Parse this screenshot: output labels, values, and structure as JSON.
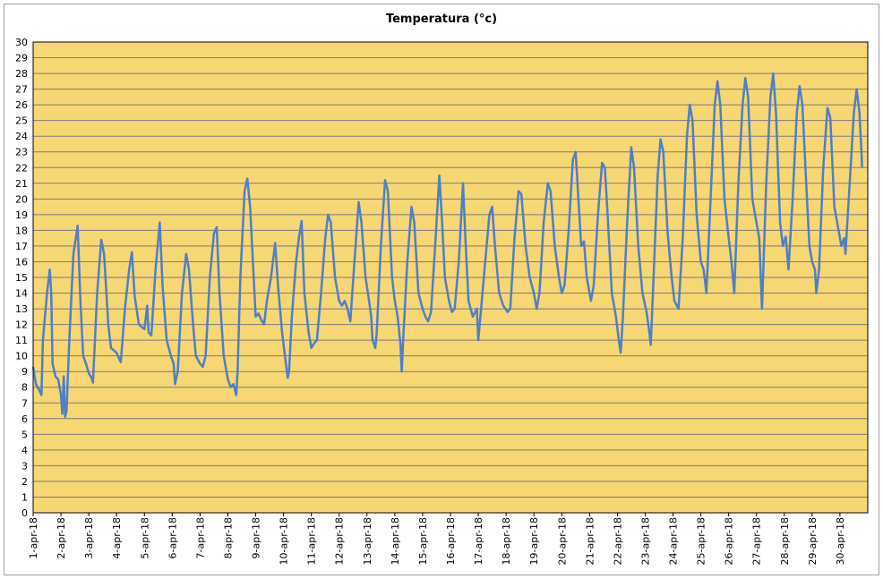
{
  "colors": {
    "plot_background": "#f7d774",
    "gridline": "#7a7a7a",
    "series_line": "#4f7fc4",
    "plot_border": "#000000"
  },
  "chart_data": {
    "type": "line",
    "title": "Temperatura (°c)",
    "xlabel": "",
    "ylabel": "",
    "ylim": [
      0,
      30
    ],
    "yticks": [
      "0",
      "1",
      "2",
      "3",
      "4",
      "5",
      "6",
      "7",
      "8",
      "9",
      "10",
      "11",
      "12",
      "13",
      "14",
      "15",
      "16",
      "17",
      "18",
      "19",
      "20",
      "21",
      "22",
      "23",
      "24",
      "25",
      "26",
      "27",
      "28",
      "29",
      "30"
    ],
    "grid": true,
    "legend": "none",
    "categories": [
      "1-apr-18",
      "2-apr-18",
      "3-apr-18",
      "4-apr-18",
      "5-apr-18",
      "6-apr-18",
      "7-apr-18",
      "8-apr-18",
      "9-apr-18",
      "10-apr-18",
      "11-apr-18",
      "12-apr-18",
      "13-apr-18",
      "14-apr-18",
      "15-apr-18",
      "16-apr-18",
      "17-apr-18",
      "18-apr-18",
      "19-apr-18",
      "20-apr-18",
      "21-apr-18",
      "22-apr-18",
      "23-apr-18",
      "24-apr-18",
      "25-apr-18",
      "26-apr-18",
      "27-apr-18",
      "28-apr-18",
      "29-apr-18",
      "30-apr-18"
    ],
    "series": [
      {
        "name": "",
        "points": [
          [
            0.0,
            9.3
          ],
          [
            0.1,
            8.2
          ],
          [
            0.2,
            7.9
          ],
          [
            0.3,
            7.5
          ],
          [
            0.35,
            11.0
          ],
          [
            0.5,
            14.0
          ],
          [
            0.6,
            15.5
          ],
          [
            0.65,
            14.0
          ],
          [
            0.7,
            9.5
          ],
          [
            0.8,
            8.7
          ],
          [
            0.9,
            8.5
          ],
          [
            1.0,
            7.5
          ],
          [
            1.05,
            6.3
          ],
          [
            1.1,
            8.7
          ],
          [
            1.15,
            6.1
          ],
          [
            1.2,
            6.5
          ],
          [
            1.3,
            11.0
          ],
          [
            1.45,
            16.5
          ],
          [
            1.6,
            18.3
          ],
          [
            1.7,
            13.5
          ],
          [
            1.8,
            10.0
          ],
          [
            1.9,
            9.5
          ],
          [
            2.0,
            8.9
          ],
          [
            2.1,
            8.6
          ],
          [
            2.15,
            8.3
          ],
          [
            2.3,
            14.0
          ],
          [
            2.45,
            17.4
          ],
          [
            2.55,
            16.5
          ],
          [
            2.7,
            12.0
          ],
          [
            2.8,
            10.5
          ],
          [
            3.0,
            10.2
          ],
          [
            3.1,
            9.8
          ],
          [
            3.15,
            9.6
          ],
          [
            3.3,
            13.0
          ],
          [
            3.45,
            15.5
          ],
          [
            3.55,
            16.6
          ],
          [
            3.65,
            13.8
          ],
          [
            3.8,
            12.0
          ],
          [
            4.0,
            11.7
          ],
          [
            4.1,
            13.2
          ],
          [
            4.15,
            11.5
          ],
          [
            4.25,
            11.3
          ],
          [
            4.4,
            15.5
          ],
          [
            4.55,
            18.5
          ],
          [
            4.65,
            14.5
          ],
          [
            4.8,
            11.0
          ],
          [
            4.95,
            10.0
          ],
          [
            5.05,
            9.5
          ],
          [
            5.1,
            8.2
          ],
          [
            5.2,
            9.0
          ],
          [
            5.35,
            14.0
          ],
          [
            5.5,
            16.5
          ],
          [
            5.6,
            15.5
          ],
          [
            5.75,
            12.0
          ],
          [
            5.85,
            10.0
          ],
          [
            6.0,
            9.5
          ],
          [
            6.1,
            9.3
          ],
          [
            6.2,
            10.0
          ],
          [
            6.35,
            15.0
          ],
          [
            6.5,
            17.8
          ],
          [
            6.6,
            18.2
          ],
          [
            6.7,
            14.0
          ],
          [
            6.85,
            10.0
          ],
          [
            7.0,
            8.5
          ],
          [
            7.1,
            8.0
          ],
          [
            7.2,
            8.2
          ],
          [
            7.3,
            7.5
          ],
          [
            7.35,
            9.0
          ],
          [
            7.45,
            15.0
          ],
          [
            7.6,
            20.5
          ],
          [
            7.7,
            21.3
          ],
          [
            7.8,
            19.5
          ],
          [
            7.9,
            16.0
          ],
          [
            8.0,
            12.5
          ],
          [
            8.1,
            12.7
          ],
          [
            8.2,
            12.3
          ],
          [
            8.3,
            12.0
          ],
          [
            8.4,
            13.5
          ],
          [
            8.55,
            15.0
          ],
          [
            8.7,
            17.2
          ],
          [
            8.8,
            14.5
          ],
          [
            8.95,
            11.5
          ],
          [
            9.05,
            10.0
          ],
          [
            9.15,
            8.6
          ],
          [
            9.2,
            9.0
          ],
          [
            9.3,
            12.5
          ],
          [
            9.45,
            16.0
          ],
          [
            9.55,
            17.5
          ],
          [
            9.65,
            18.6
          ],
          [
            9.75,
            14.0
          ],
          [
            9.9,
            11.5
          ],
          [
            10.0,
            10.5
          ],
          [
            10.1,
            10.8
          ],
          [
            10.2,
            11.0
          ],
          [
            10.35,
            14.0
          ],
          [
            10.5,
            17.5
          ],
          [
            10.6,
            19.0
          ],
          [
            10.7,
            18.5
          ],
          [
            10.85,
            15.0
          ],
          [
            11.0,
            13.5
          ],
          [
            11.1,
            13.2
          ],
          [
            11.2,
            13.5
          ],
          [
            11.3,
            13.0
          ],
          [
            11.4,
            12.2
          ],
          [
            11.55,
            16.0
          ],
          [
            11.7,
            19.8
          ],
          [
            11.8,
            18.5
          ],
          [
            11.95,
            15.0
          ],
          [
            12.05,
            13.8
          ],
          [
            12.15,
            12.5
          ],
          [
            12.2,
            11.0
          ],
          [
            12.3,
            10.5
          ],
          [
            12.35,
            11.5
          ],
          [
            12.5,
            17.0
          ],
          [
            12.65,
            21.2
          ],
          [
            12.75,
            20.5
          ],
          [
            12.9,
            15.0
          ],
          [
            13.0,
            13.5
          ],
          [
            13.1,
            12.5
          ],
          [
            13.2,
            10.8
          ],
          [
            13.25,
            9.0
          ],
          [
            13.3,
            11.0
          ],
          [
            13.45,
            16.0
          ],
          [
            13.6,
            19.5
          ],
          [
            13.7,
            18.5
          ],
          [
            13.85,
            14.0
          ],
          [
            14.0,
            13.0
          ],
          [
            14.1,
            12.5
          ],
          [
            14.2,
            12.2
          ],
          [
            14.3,
            12.8
          ],
          [
            14.45,
            17.0
          ],
          [
            14.6,
            21.5
          ],
          [
            14.7,
            18.5
          ],
          [
            14.8,
            15.0
          ],
          [
            14.95,
            13.5
          ],
          [
            15.05,
            12.8
          ],
          [
            15.15,
            13.0
          ],
          [
            15.3,
            16.0
          ],
          [
            15.45,
            21.0
          ],
          [
            15.55,
            17.0
          ],
          [
            15.65,
            13.5
          ],
          [
            15.8,
            12.5
          ],
          [
            15.95,
            13.0
          ],
          [
            16.0,
            11.0
          ],
          [
            16.1,
            13.0
          ],
          [
            16.25,
            16.0
          ],
          [
            16.4,
            19.0
          ],
          [
            16.5,
            19.5
          ],
          [
            16.6,
            17.0
          ],
          [
            16.75,
            14.0
          ],
          [
            16.9,
            13.2
          ],
          [
            17.05,
            12.8
          ],
          [
            17.15,
            13.0
          ],
          [
            17.3,
            17.5
          ],
          [
            17.45,
            20.5
          ],
          [
            17.55,
            20.3
          ],
          [
            17.7,
            17.0
          ],
          [
            17.85,
            15.0
          ],
          [
            18.0,
            14.0
          ],
          [
            18.1,
            13.0
          ],
          [
            18.2,
            14.0
          ],
          [
            18.35,
            18.5
          ],
          [
            18.5,
            21.0
          ],
          [
            18.6,
            20.5
          ],
          [
            18.75,
            17.0
          ],
          [
            18.9,
            15.0
          ],
          [
            19.0,
            14.0
          ],
          [
            19.1,
            14.5
          ],
          [
            19.25,
            18.0
          ],
          [
            19.4,
            22.5
          ],
          [
            19.5,
            23.0
          ],
          [
            19.6,
            20.0
          ],
          [
            19.7,
            17.0
          ],
          [
            19.8,
            17.3
          ],
          [
            19.9,
            15.0
          ],
          [
            20.05,
            13.5
          ],
          [
            20.15,
            14.5
          ],
          [
            20.3,
            19.0
          ],
          [
            20.45,
            22.3
          ],
          [
            20.55,
            22.0
          ],
          [
            20.65,
            19.0
          ],
          [
            20.8,
            14.0
          ],
          [
            20.95,
            12.5
          ],
          [
            21.05,
            11.0
          ],
          [
            21.12,
            10.2
          ],
          [
            21.2,
            12.5
          ],
          [
            21.35,
            18.5
          ],
          [
            21.5,
            23.3
          ],
          [
            21.6,
            22.0
          ],
          [
            21.75,
            17.0
          ],
          [
            21.9,
            14.0
          ],
          [
            22.05,
            12.8
          ],
          [
            22.15,
            11.5
          ],
          [
            22.2,
            10.7
          ],
          [
            22.3,
            15.0
          ],
          [
            22.45,
            21.5
          ],
          [
            22.55,
            23.8
          ],
          [
            22.65,
            23.0
          ],
          [
            22.8,
            18.0
          ],
          [
            22.95,
            15.0
          ],
          [
            23.05,
            13.5
          ],
          [
            23.2,
            13.0
          ],
          [
            23.35,
            17.5
          ],
          [
            23.5,
            24.0
          ],
          [
            23.6,
            26.0
          ],
          [
            23.7,
            25.0
          ],
          [
            23.85,
            19.0
          ],
          [
            24.0,
            16.0
          ],
          [
            24.1,
            15.5
          ],
          [
            24.2,
            14.0
          ],
          [
            24.35,
            20.0
          ],
          [
            24.5,
            26.0
          ],
          [
            24.6,
            27.5
          ],
          [
            24.7,
            26.0
          ],
          [
            24.85,
            20.0
          ],
          [
            25.0,
            17.5
          ],
          [
            25.1,
            16.0
          ],
          [
            25.2,
            14.0
          ],
          [
            25.35,
            21.0
          ],
          [
            25.5,
            26.0
          ],
          [
            25.6,
            27.7
          ],
          [
            25.7,
            26.5
          ],
          [
            25.85,
            20.0
          ],
          [
            26.0,
            18.5
          ],
          [
            26.1,
            17.5
          ],
          [
            26.2,
            13.0
          ],
          [
            26.35,
            21.0
          ],
          [
            26.5,
            26.5
          ],
          [
            26.6,
            28.0
          ],
          [
            26.7,
            25.5
          ],
          [
            26.85,
            18.5
          ],
          [
            26.95,
            17.0
          ],
          [
            27.05,
            17.6
          ],
          [
            27.15,
            15.5
          ],
          [
            27.3,
            20.0
          ],
          [
            27.45,
            25.5
          ],
          [
            27.55,
            27.2
          ],
          [
            27.65,
            26.0
          ],
          [
            27.8,
            20.5
          ],
          [
            27.9,
            17.0
          ],
          [
            28.0,
            16.0
          ],
          [
            28.1,
            15.5
          ],
          [
            28.15,
            14.0
          ],
          [
            28.25,
            15.5
          ],
          [
            28.4,
            22.0
          ],
          [
            28.55,
            25.8
          ],
          [
            28.65,
            25.2
          ],
          [
            28.8,
            19.5
          ],
          [
            28.95,
            18.0
          ],
          [
            29.05,
            17.0
          ],
          [
            29.15,
            17.5
          ],
          [
            29.2,
            16.5
          ],
          [
            29.35,
            21.0
          ],
          [
            29.5,
            25.5
          ],
          [
            29.6,
            27.0
          ],
          [
            29.7,
            25.5
          ],
          [
            29.8,
            22.0
          ]
        ]
      }
    ]
  }
}
